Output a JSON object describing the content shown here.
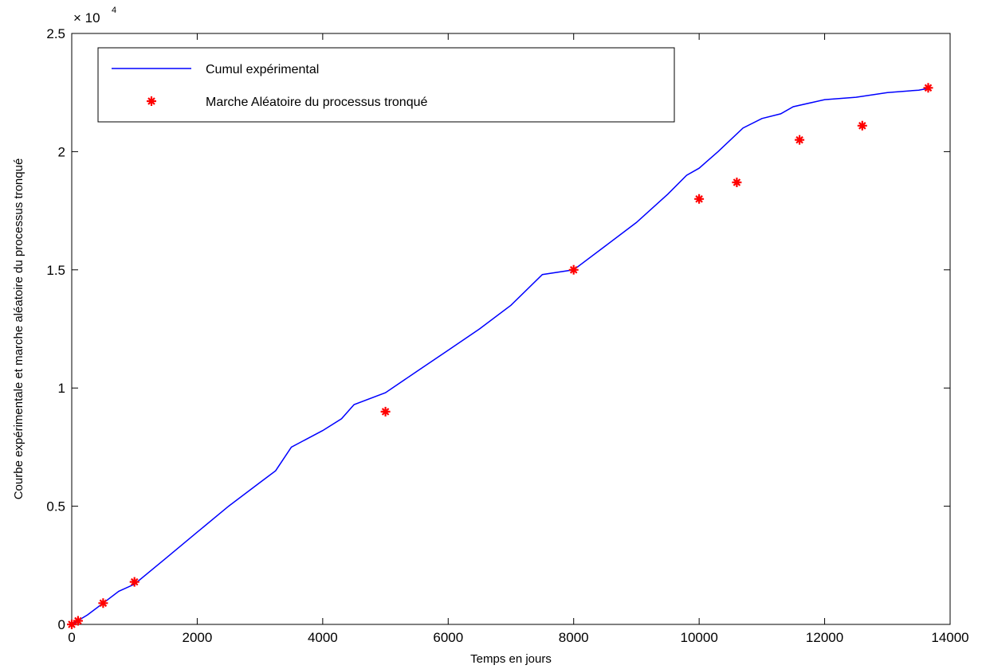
{
  "chart_data": {
    "type": "line",
    "xlabel": "Temps en jours",
    "ylabel": "Courbe expérimentale et marche aléatoire du processus tronqué",
    "xlim": [
      0,
      14000
    ],
    "ylim": [
      0,
      25000
    ],
    "x_ticks": [
      0,
      2000,
      4000,
      6000,
      8000,
      10000,
      12000,
      14000
    ],
    "y_ticks": [
      0,
      0.5,
      1,
      1.5,
      2,
      2.5
    ],
    "y_multiplier": {
      "base": "× 10",
      "exponent": "4"
    },
    "grid": false,
    "legend_position": "top-left",
    "series": [
      {
        "name": "Cumul expérimental",
        "kind": "line",
        "color": "#0000ff",
        "x": [
          0,
          250,
          500,
          750,
          1000,
          1500,
          2000,
          2500,
          3000,
          3250,
          3500,
          4000,
          4300,
          4500,
          5000,
          5500,
          6000,
          6500,
          7000,
          7500,
          8000,
          8500,
          9000,
          9500,
          9800,
          10000,
          10300,
          10700,
          11000,
          11300,
          11500,
          12000,
          12500,
          13000,
          13500,
          13700
        ],
        "y": [
          0,
          400,
          900,
          1400,
          1700,
          2800,
          3900,
          5000,
          6000,
          6500,
          7500,
          8200,
          8700,
          9300,
          9800,
          10700,
          11600,
          12500,
          13500,
          14800,
          15000,
          16000,
          17000,
          18200,
          19000,
          19300,
          20000,
          21000,
          21400,
          21600,
          21900,
          22200,
          22300,
          22500,
          22600,
          22700
        ]
      },
      {
        "name": "Marche Aléatoire du processus tronqué",
        "kind": "scatter",
        "marker": "star",
        "color": "#ff0000",
        "x": [
          0,
          100,
          500,
          1000,
          5000,
          8000,
          10000,
          10600,
          11600,
          12600,
          13650
        ],
        "y": [
          0,
          150,
          900,
          1800,
          9000,
          15000,
          18000,
          18700,
          20500,
          21100,
          22700
        ]
      }
    ]
  }
}
